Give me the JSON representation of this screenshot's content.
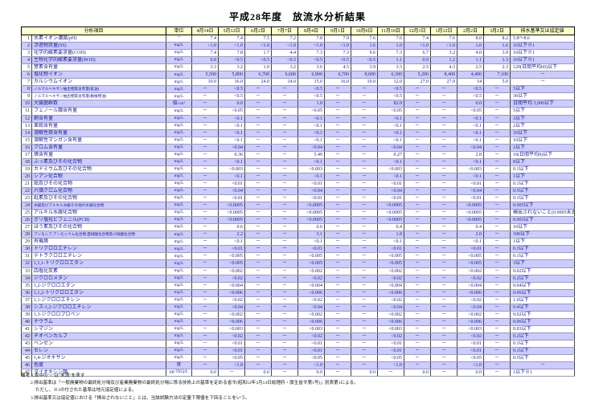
{
  "title": "平成28年度　放流水分析結果",
  "colors": {
    "header_bg": "#ffffcc",
    "row_alt_bg": "#ccccff",
    "data_text": "#1a1a8f",
    "border": "#000000"
  },
  "table": {
    "headers": {
      "item": "分析項目",
      "unit": "単位",
      "dates": [
        "4月14日",
        "5月12日",
        "6月2日",
        "7月7日",
        "8月4日",
        "9月1日",
        "10月6日",
        "11月10日",
        "12月1日",
        "1月12日",
        "2月2日",
        "3月2日"
      ],
      "standard": "排水基準又は協定値"
    },
    "rows": [
      {
        "no": 1,
        "item": "水素イオン濃度(pH)",
        "unit": "－",
        "values": [
          "7.4",
          "7.4",
          "7.5",
          "7.2",
          "7.8",
          "7.9",
          "7.6",
          "7.6",
          "7.4",
          "7.6",
          "8.0",
          "8.2"
        ],
        "std": "5.8～8.6"
      },
      {
        "no": 2,
        "item": "浮遊物質量(SS)",
        "unit": "mg/L",
        "values": [
          "<1.0",
          "<1.0",
          "<1.0",
          "<1.0",
          "<1.0",
          "<1.0",
          "1.6",
          "1.0",
          "<1.0",
          "<1.0",
          "1.0",
          "1.6"
        ],
        "std": "10以下※1"
      },
      {
        "no": 3,
        "item": "化学的酸素要求量(COD)",
        "unit": "mg/L",
        "values": [
          "7.4",
          "7.8",
          "1.7",
          "4.4",
          "7.3",
          "7.3",
          "9.6",
          "7.3",
          "6.7",
          "3.2",
          "4.0",
          "3.9"
        ],
        "std": "10以下※1"
      },
      {
        "no": 4,
        "item": "生物化学的酸素要求量(BOD)",
        "unit": "mg/L",
        "values": [
          "0.8",
          "<0.5",
          "<0.5",
          "<0.5",
          "<0.5",
          "<0.5",
          "<0.5",
          "1.1",
          "0.9",
          "1.2",
          "1.1",
          "1.3"
        ],
        "std": "10以下※1"
      },
      {
        "no": 5,
        "item": "窒素含有量",
        "unit": "mg/L",
        "values": [
          "3.3",
          "3.2",
          "1.9",
          "3.2",
          "3.6",
          "4.5",
          "3.9",
          "3.3",
          "2.5",
          "4.3",
          "2.5",
          "2.3"
        ],
        "std": "120(日間平均60)以下"
      },
      {
        "no": 6,
        "item": "塩化物イオン",
        "unit": "mg/L",
        "values": [
          "5,500",
          "5,800",
          "6,700",
          "6,600",
          "6,900",
          "6,700",
          "8,000",
          "6,300",
          "5,200",
          "8,400",
          "4,400",
          "7,100"
        ],
        "std": "－"
      },
      {
        "no": 7,
        "item": "カルシウムイオン",
        "unit": "mg/L",
        "values": [
          "19.0",
          "16.0",
          "24.0",
          "14.0",
          "15.0",
          "16.0",
          "19.0",
          "12.0",
          "27.0",
          "27.0",
          "14",
          "5.0"
        ],
        "std": "－"
      },
      {
        "no": 8,
        "item": "ノルマルヘキサン抽出物質含有量(鉱油)",
        "unit": "mg/L",
        "values": [
          "－",
          "<0.5",
          "－",
          "－",
          "<0.5",
          "－",
          "－",
          "<0.5",
          "－",
          "－",
          "<0.5",
          "－"
        ],
        "std": "5以下"
      },
      {
        "no": 9,
        "item": "ノルマルヘキサン抽出物質含有量(動植物油)",
        "unit": "mg/L",
        "values": [
          "－",
          "<0.5",
          "－",
          "－",
          "<0.5",
          "－",
          "－",
          "<0.5",
          "－",
          "－",
          "<0.5",
          "－"
        ],
        "std": "30以下"
      },
      {
        "no": 10,
        "item": "大腸菌群数",
        "unit": "個/cm³",
        "values": [
          "－",
          "0.0",
          "－",
          "－",
          "1.0",
          "－",
          "－",
          "82.0",
          "－",
          "－",
          "0.0",
          "－"
        ],
        "std": "日間平均 3,000以下"
      },
      {
        "no": 11,
        "item": "フェノール類含有量",
        "unit": "mg/L",
        "values": [
          "－",
          "<0.05",
          "－",
          "－",
          "<0.05",
          "－",
          "－",
          "<0.05",
          "－",
          "－",
          "<0.05",
          "－"
        ],
        "std": "5以下"
      },
      {
        "no": 12,
        "item": "銅含有量",
        "unit": "mg/L",
        "values": [
          "－",
          "<0.1",
          "－",
          "－",
          "<0.1",
          "－",
          "－",
          "<0.1",
          "－",
          "－",
          "<0.1",
          "－"
        ],
        "std": "3以下"
      },
      {
        "no": 13,
        "item": "亜鉛含有量",
        "unit": "mg/L",
        "values": [
          "－",
          "<0.1",
          "－",
          "－",
          "<0.1",
          "－",
          "－",
          "<0.1",
          "－",
          "－",
          "<0.1",
          "－"
        ],
        "std": "2以下"
      },
      {
        "no": 14,
        "item": "溶解性鉄含有量",
        "unit": "mg/L",
        "values": [
          "－",
          "<0.1",
          "－",
          "－",
          "<0.1",
          "－",
          "－",
          "<0.1",
          "－",
          "－",
          "<0.1",
          "－"
        ],
        "std": "10以下"
      },
      {
        "no": 15,
        "item": "溶解性マンガン含有量",
        "unit": "mg/L",
        "values": [
          "－",
          "<0.1",
          "－",
          "－",
          "<0.1",
          "－",
          "－",
          "<0.1",
          "－",
          "－",
          "<0.1",
          "－"
        ],
        "std": "10以下"
      },
      {
        "no": 16,
        "item": "クロム含有量",
        "unit": "mg/L",
        "values": [
          "－",
          "<0.04",
          "－",
          "－",
          "<0.04",
          "－",
          "－",
          "<0.04",
          "－",
          "－",
          "<0.04",
          "－"
        ],
        "std": "2以下"
      },
      {
        "no": 17,
        "item": "燐含有量",
        "unit": "mg/L",
        "values": [
          "－",
          "0.36",
          "－",
          "－",
          "5.49",
          "－",
          "－",
          "0.27",
          "－",
          "－",
          "2.8",
          "－"
        ],
        "std": "16(日間平均8)以下"
      },
      {
        "no": 18,
        "item": "ふっ素及びその化合物",
        "unit": "mg/L",
        "values": [
          "－",
          "<0.1",
          "－",
          "－",
          "<0.1",
          "－",
          "－",
          "<0.1",
          "－",
          "－",
          "<0.1",
          "－"
        ],
        "std": "8以下"
      },
      {
        "no": 19,
        "item": "カドミウム及びその化合物",
        "unit": "mg/L",
        "values": [
          "－",
          "<0.003",
          "－",
          "－",
          "<0.003",
          "－",
          "－",
          "<0.003",
          "－",
          "－",
          "<0.003",
          "－"
        ],
        "std": "0.1以下"
      },
      {
        "no": 20,
        "item": "シアン化合物",
        "unit": "mg/L",
        "values": [
          "－",
          "<0.1",
          "－",
          "－",
          "<0.1",
          "－",
          "－",
          "<0.1",
          "－",
          "－",
          "<0.1",
          "－"
        ],
        "std": "1以下"
      },
      {
        "no": 21,
        "item": "鉛及びその化合物",
        "unit": "mg/L",
        "values": [
          "－",
          "<0.01",
          "－",
          "－",
          "<0.01",
          "－",
          "－",
          "<0.01",
          "－",
          "－",
          "<0.01",
          "－"
        ],
        "std": "0.1以下"
      },
      {
        "no": 22,
        "item": "六価クロム化合物",
        "unit": "mg/L",
        "values": [
          "－",
          "<0.04",
          "－",
          "－",
          "<0.04",
          "－",
          "－",
          "<0.04",
          "－",
          "－",
          "<0.04",
          "－"
        ],
        "std": "0.5以下"
      },
      {
        "no": 23,
        "item": "砒素及びその化合物",
        "unit": "mg/L",
        "values": [
          "－",
          "<0.01",
          "－",
          "－",
          "<0.01",
          "－",
          "－",
          "<0.01",
          "－",
          "－",
          "<0.01",
          "－"
        ],
        "std": "0.1以下"
      },
      {
        "no": 24,
        "item": "水銀及びアルキル水銀その他の水銀化合物",
        "unit": "mg/L",
        "values": [
          "－",
          "<0.0005",
          "－",
          "－",
          "<0.0005",
          "－",
          "－",
          "<0.0005",
          "－",
          "－",
          "<0.0005",
          "－"
        ],
        "std": "0.005以下"
      },
      {
        "no": 25,
        "item": "アルキル水銀化合物",
        "unit": "mg/L",
        "values": [
          "－",
          "<0.0005",
          "－",
          "－",
          "<0.0005",
          "－",
          "－",
          "<0.0005",
          "－",
          "－",
          "<0.0005",
          "－"
        ],
        "std": "検出されないこと(0.0005未満)"
      },
      {
        "no": 26,
        "item": "ポリ塩化ビフェニル(PCB)",
        "unit": "mg/L",
        "values": [
          "－",
          "<0.0005",
          "－",
          "－",
          "<0.0005",
          "－",
          "－",
          "<0.0005",
          "－",
          "－",
          "<0.0005",
          "－"
        ],
        "std": "0.003以下"
      },
      {
        "no": 27,
        "item": "ほう素及びその化合物",
        "unit": "mg/L",
        "values": [
          "－",
          "0.6",
          "－",
          "－",
          "0.6",
          "－",
          "－",
          "0.4",
          "－",
          "－",
          "0.4",
          "－"
        ],
        "std": "10以下"
      },
      {
        "no": 28,
        "item": "アンモニア,アンモニウム化合物,亜硝酸化合物及び硝酸化合物",
        "unit": "mg/L",
        "values": [
          "－",
          "2.2",
          "－",
          "－",
          "3.1",
          "－",
          "－",
          "1.8",
          "－",
          "－",
          "2.0",
          "－"
        ],
        "std": "100以下"
      },
      {
        "no": 29,
        "item": "有機燐",
        "unit": "mg/L",
        "values": [
          "－",
          "<0.1",
          "－",
          "－",
          "<0.1",
          "－",
          "－",
          "<0.1",
          "－",
          "－",
          "<0.1",
          "－"
        ],
        "std": "1以下"
      },
      {
        "no": 30,
        "item": "トリクロロエチレン",
        "unit": "mg/L",
        "values": [
          "－",
          "<0.01",
          "－",
          "－",
          "<0.01",
          "－",
          "－",
          "<0.01",
          "－",
          "－",
          "<0.01",
          "－"
        ],
        "std": "0.3以下"
      },
      {
        "no": 31,
        "item": "テトラクロロエチレン",
        "unit": "mg/L",
        "values": [
          "－",
          "<0.005",
          "－",
          "－",
          "<0.005",
          "－",
          "－",
          "<0.005",
          "－",
          "－",
          "<0.005",
          "－"
        ],
        "std": "0.1以下"
      },
      {
        "no": 32,
        "item": "1,1,1-トリクロロエタン",
        "unit": "mg/L",
        "values": [
          "－",
          "<0.005",
          "－",
          "－",
          "<0.005",
          "－",
          "－",
          "<0.005",
          "－",
          "－",
          "<0.005",
          "－"
        ],
        "std": "3以下"
      },
      {
        "no": 33,
        "item": "四塩化炭素",
        "unit": "mg/L",
        "values": [
          "－",
          "<0.002",
          "－",
          "－",
          "<0.002",
          "－",
          "－",
          "<0.002",
          "－",
          "－",
          "<0.002",
          "－"
        ],
        "std": "0.02以下"
      },
      {
        "no": 34,
        "item": "ジクロロメタン",
        "unit": "mg/L",
        "values": [
          "－",
          "<0.02",
          "－",
          "－",
          "<0.02",
          "－",
          "－",
          "<0.02",
          "－",
          "－",
          "<0.02",
          "－"
        ],
        "std": "0.2以下"
      },
      {
        "no": 35,
        "item": "1,2-ジクロロエタン",
        "unit": "mg/L",
        "values": [
          "－",
          "<0.004",
          "－",
          "－",
          "<0.004",
          "－",
          "－",
          "<0.004",
          "－",
          "－",
          "<0.004",
          "－"
        ],
        "std": "0.04以下"
      },
      {
        "no": 36,
        "item": "1,1,2-トリクロロエタン",
        "unit": "mg/L",
        "values": [
          "－",
          "<0.006",
          "－",
          "－",
          "<0.006",
          "－",
          "－",
          "<0.006",
          "－",
          "－",
          "<0.006",
          "－"
        ],
        "std": "0.06以下"
      },
      {
        "no": 37,
        "item": "1,1-ジクロロエチレン",
        "unit": "mg/L",
        "values": [
          "－",
          "<0.02",
          "－",
          "－",
          "<0.02",
          "－",
          "－",
          "<0.02",
          "－",
          "－",
          "<0.02",
          "－"
        ],
        "std": "1.0以下"
      },
      {
        "no": 38,
        "item": "シス-1,2-ジクロロエチレン",
        "unit": "mg/L",
        "values": [
          "－",
          "<0.04",
          "－",
          "－",
          "<0.04",
          "－",
          "－",
          "<0.04",
          "－",
          "－",
          "<0.04",
          "－"
        ],
        "std": "0.4以下"
      },
      {
        "no": 39,
        "item": "1,3-ジクロロプロペン",
        "unit": "mg/L",
        "values": [
          "－",
          "<0.002",
          "－",
          "－",
          "<0.002",
          "－",
          "－",
          "<0.002",
          "－",
          "－",
          "<0.002",
          "－"
        ],
        "std": "0.02以下"
      },
      {
        "no": 40,
        "item": "チウラム",
        "unit": "mg/L",
        "values": [
          "－",
          "<0.006",
          "－",
          "－",
          "<0.006",
          "－",
          "－",
          "<0.006",
          "－",
          "－",
          "<0.006",
          "－"
        ],
        "std": "0.06以下"
      },
      {
        "no": 41,
        "item": "シマジン",
        "unit": "mg/L",
        "values": [
          "－",
          "<0.003",
          "－",
          "－",
          "<0.003",
          "－",
          "－",
          "<0.003",
          "－",
          "－",
          "<0.003",
          "－"
        ],
        "std": "0.03以下"
      },
      {
        "no": 42,
        "item": "チオベンカルブ",
        "unit": "mg/L",
        "values": [
          "－",
          "<0.02",
          "－",
          "－",
          "<0.02",
          "－",
          "－",
          "<0.02",
          "－",
          "－",
          "<0.02",
          "－"
        ],
        "std": "0.2以下"
      },
      {
        "no": 43,
        "item": "ベンゼン",
        "unit": "mg/L",
        "values": [
          "－",
          "<0.01",
          "－",
          "－",
          "<0.01",
          "－",
          "－",
          "<0.01",
          "－",
          "－",
          "<0.01",
          "－"
        ],
        "std": "0.1以下"
      },
      {
        "no": 44,
        "item": "セレン",
        "unit": "mg/L",
        "values": [
          "－",
          "<0.01",
          "－",
          "－",
          "<0.01",
          "－",
          "－",
          "<0.01",
          "－",
          "－",
          "<0.01",
          "－"
        ],
        "std": "0.1以下"
      },
      {
        "no": 45,
        "item": "1,4-ジオキサン",
        "unit": "mg/L",
        "values": [
          "－",
          "<0.05",
          "－",
          "－",
          "<0.05",
          "－",
          "－",
          "<0.05",
          "－",
          "－",
          "<0.05",
          "－"
        ],
        "std": "0.5以下"
      },
      {
        "no": 46,
        "item": "色度",
        "unit": "度",
        "values": [
          "－",
          "<1.0",
          "－",
          "－",
          "<1.0",
          "－",
          "－",
          "<1.0",
          "－",
          "－",
          "<1.0",
          "－"
        ],
        "std": "－"
      },
      {
        "no": 47,
        "item": "ダイオキシン類",
        "unit": "pg-TEQ/L",
        "values": [
          "0.0",
          "－",
          "0.0",
          "－",
          "0.0",
          "－",
          "0.0",
          "－",
          "0.0",
          "－",
          "0.0",
          "－"
        ],
        "std": "1以下※1"
      }
    ]
  },
  "notes": [
    "備考 1.表中の\"<\"は\"未満\"を表す",
    "2.排出基準は「一般廃棄物の最終処分場及び産業廃棄物の最終処分場に係る技術上の基準を定める省令(昭和52年3月14日総理府・厚生省令第1号)」別表第1による。",
    "ただし、※1の付された基準は地元協定値による。",
    "3.排出基準又は協定値における「検出されないこと」とは、当該試験方法の定量下限値を下回ることをいう。"
  ]
}
